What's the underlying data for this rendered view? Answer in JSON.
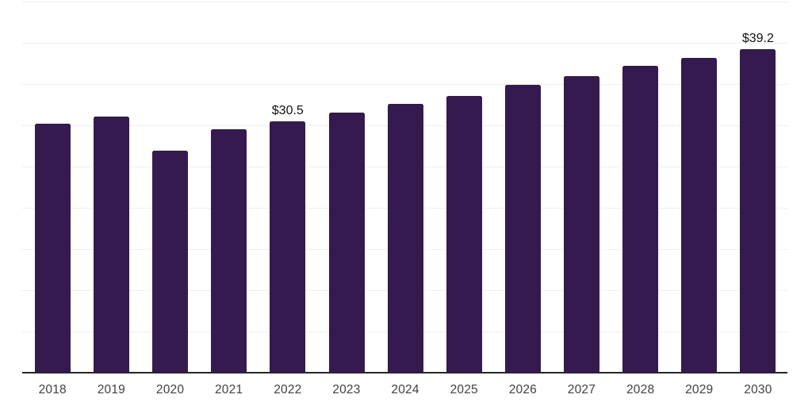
{
  "chart_data": {
    "type": "bar",
    "title": "",
    "xlabel": "",
    "ylabel": "",
    "categories": [
      "2018",
      "2019",
      "2020",
      "2021",
      "2022",
      "2023",
      "2024",
      "2025",
      "2026",
      "2027",
      "2028",
      "2029",
      "2030"
    ],
    "values": [
      30.2,
      31.1,
      26.9,
      29.5,
      30.5,
      31.5,
      32.6,
      33.6,
      34.9,
      36.0,
      37.2,
      38.2,
      39.2
    ],
    "data_labels": {
      "2022": "$30.5",
      "2030": "$39.2"
    },
    "ylim": [
      0,
      45
    ],
    "grid_step": 5,
    "grid": "horizontal",
    "legend": "none",
    "y_axis_tick_labels": "none",
    "colors": {
      "bar": "#341a4f",
      "gridline": "#efefef",
      "axis_line": "#262626",
      "tick_label": "#404040",
      "value_label": "#111111",
      "background": "#ffffff"
    }
  }
}
